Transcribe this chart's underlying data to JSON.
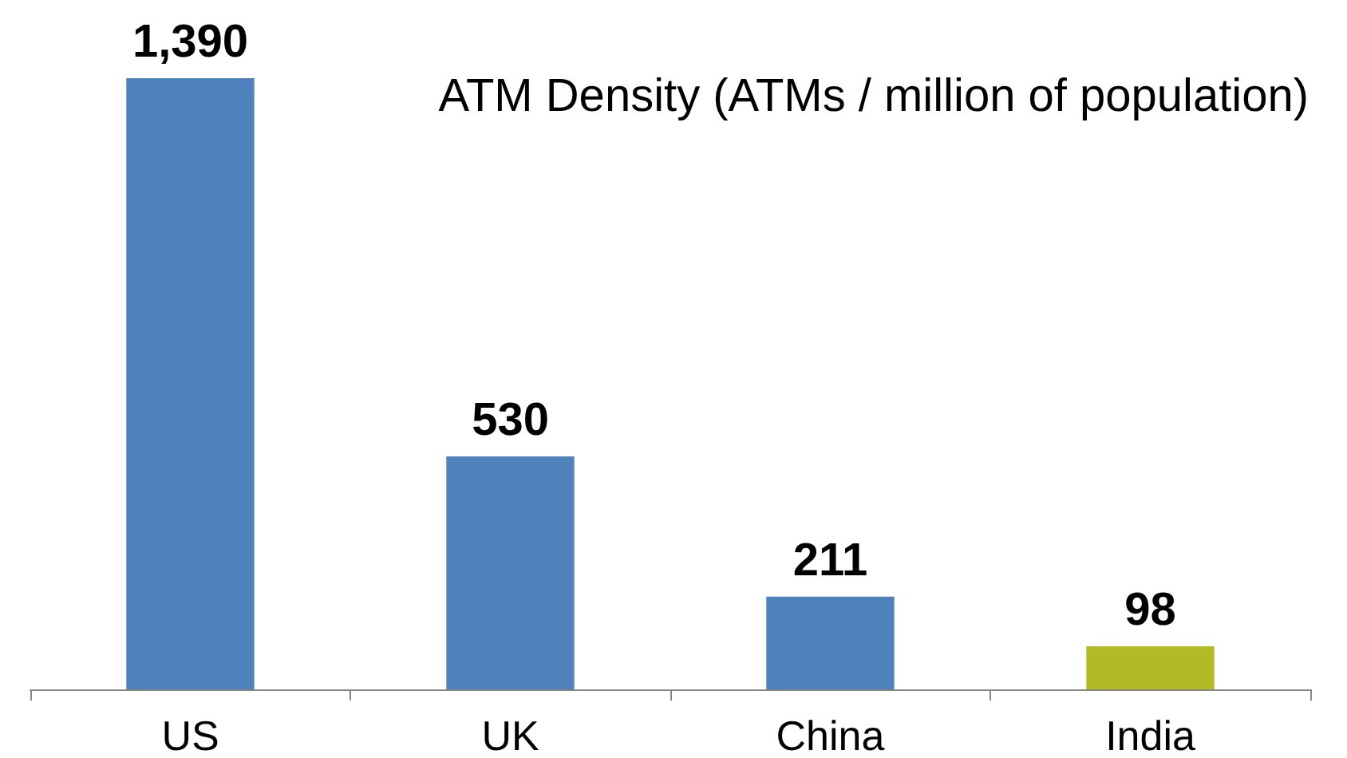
{
  "chart_data": {
    "type": "bar",
    "title": "ATM Density (ATMs / million of population)",
    "categories": [
      "US",
      "UK",
      "China",
      "India"
    ],
    "values": [
      1390,
      530,
      211,
      98
    ],
    "colors": [
      "#4f81bd",
      "#4f81bd",
      "#4f81bd",
      "#b0bb25"
    ],
    "value_labels": [
      "1,390",
      "530",
      "211",
      "98"
    ],
    "tick_labels": "x"
  }
}
